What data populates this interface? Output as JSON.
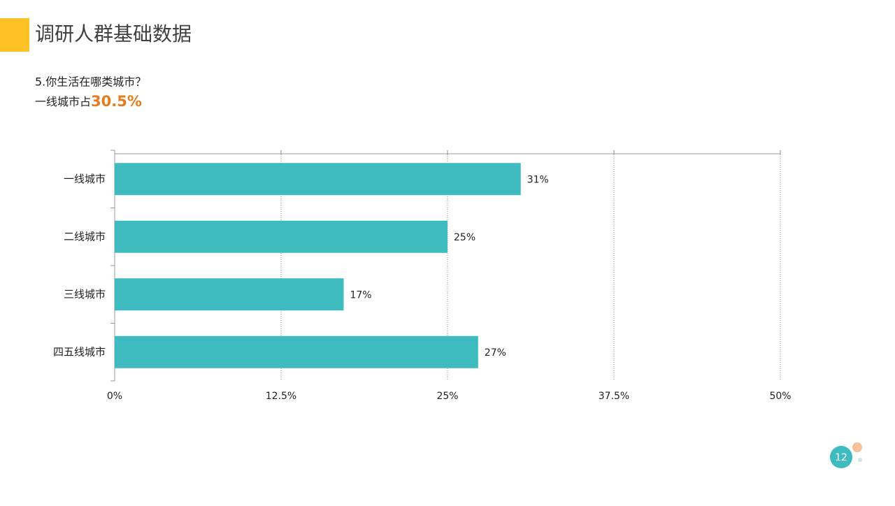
{
  "slide": {
    "title": "调研人群基础数据",
    "question": "5.你生活在哪类城市？",
    "highlight_prefix": "一线城市占",
    "highlight_value": "30.5%",
    "page_number": "12"
  },
  "chart_data": {
    "type": "bar",
    "orientation": "horizontal",
    "categories": [
      "一线城市",
      "二线城市",
      "三线城市",
      "四五线城市"
    ],
    "values": [
      30.5,
      25,
      17.2,
      27.3
    ],
    "value_labels": [
      "31%",
      "25%",
      "17%",
      "27%"
    ],
    "color": "#3dbbbf",
    "xlim": [
      0,
      50
    ],
    "xticks": [
      {
        "value": 0,
        "label": "0%"
      },
      {
        "value": 12.5,
        "label": "12.5%"
      },
      {
        "value": 25,
        "label": "25%"
      },
      {
        "value": 37.5,
        "label": "37.5%"
      },
      {
        "value": 50,
        "label": "50%"
      }
    ],
    "grid": true
  }
}
